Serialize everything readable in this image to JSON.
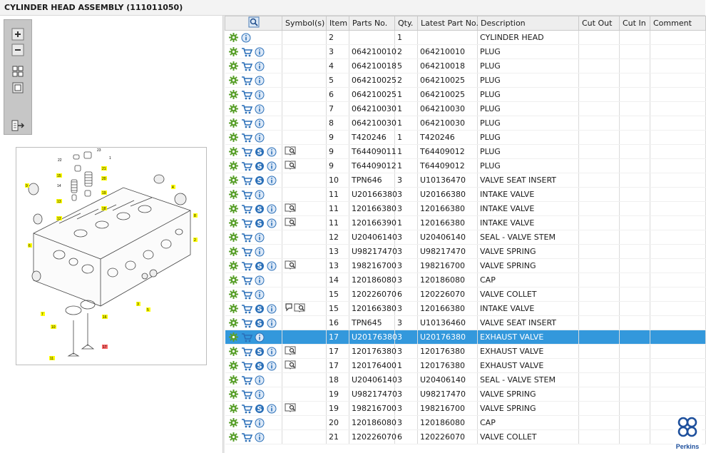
{
  "header": {
    "title": "CYLINDER HEAD ASSEMBLY (111011050)"
  },
  "toolbar": {
    "tools": [
      "zoom-in-icon",
      "zoom-out-icon",
      "fit-grid-icon",
      "fit-page-icon",
      "export-icon"
    ]
  },
  "diagram": {
    "callouts": [
      "1",
      "2",
      "3",
      "4",
      "5",
      "6",
      "7",
      "8",
      "9",
      "10",
      "11",
      "12",
      "13",
      "14",
      "15",
      "16",
      "17",
      "18",
      "19",
      "20",
      "21",
      "22",
      "23"
    ]
  },
  "table": {
    "columns": [
      "",
      "Symbol(s)",
      "Item",
      "Parts No.",
      "Qty.",
      "Latest Part No.",
      "Description",
      "Cut Out",
      "Cut In",
      "Comment"
    ],
    "rows": [
      {
        "item": "2",
        "part": "",
        "qty": "1",
        "latest": "",
        "desc": "CYLINDER HEAD",
        "cart": false,
        "s": false,
        "sym": "",
        "selected": false
      },
      {
        "item": "3",
        "part": "064210010",
        "qty": "2",
        "latest": "064210010",
        "desc": "PLUG",
        "cart": true,
        "s": false,
        "sym": "",
        "selected": false
      },
      {
        "item": "4",
        "part": "064210018",
        "qty": "5",
        "latest": "064210018",
        "desc": "PLUG",
        "cart": true,
        "s": false,
        "sym": "",
        "selected": false
      },
      {
        "item": "5",
        "part": "064210025",
        "qty": "2",
        "latest": "064210025",
        "desc": "PLUG",
        "cart": true,
        "s": false,
        "sym": "",
        "selected": false
      },
      {
        "item": "6",
        "part": "064210025",
        "qty": "1",
        "latest": "064210025",
        "desc": "PLUG",
        "cart": true,
        "s": false,
        "sym": "",
        "selected": false
      },
      {
        "item": "7",
        "part": "064210030",
        "qty": "1",
        "latest": "064210030",
        "desc": "PLUG",
        "cart": true,
        "s": false,
        "sym": "",
        "selected": false
      },
      {
        "item": "8",
        "part": "064210030",
        "qty": "1",
        "latest": "064210030",
        "desc": "PLUG",
        "cart": true,
        "s": false,
        "sym": "",
        "selected": false
      },
      {
        "item": "9",
        "part": "T420246",
        "qty": "1",
        "latest": "T420246",
        "desc": "PLUG",
        "cart": true,
        "s": false,
        "sym": "",
        "selected": false
      },
      {
        "item": "9",
        "part": "T64409011",
        "qty": "1",
        "latest": "T64409012",
        "desc": "PLUG",
        "cart": true,
        "s": true,
        "sym": "book",
        "selected": false
      },
      {
        "item": "9",
        "part": "T64409012",
        "qty": "1",
        "latest": "T64409012",
        "desc": "PLUG",
        "cart": true,
        "s": true,
        "sym": "book",
        "selected": false
      },
      {
        "item": "10",
        "part": "TPN646",
        "qty": "3",
        "latest": "U10136470",
        "desc": "VALVE SEAT INSERT",
        "cart": true,
        "s": true,
        "sym": "",
        "selected": false
      },
      {
        "item": "11",
        "part": "U20166380",
        "qty": "3",
        "latest": "U20166380",
        "desc": "INTAKE VALVE",
        "cart": true,
        "s": false,
        "sym": "",
        "selected": false
      },
      {
        "item": "11",
        "part": "120166380",
        "qty": "3",
        "latest": "120166380",
        "desc": "INTAKE VALVE",
        "cart": true,
        "s": true,
        "sym": "book",
        "selected": false
      },
      {
        "item": "11",
        "part": "120166390",
        "qty": "1",
        "latest": "120166380",
        "desc": "INTAKE VALVE",
        "cart": true,
        "s": true,
        "sym": "book",
        "selected": false
      },
      {
        "item": "12",
        "part": "U20406140",
        "qty": "3",
        "latest": "U20406140",
        "desc": "SEAL - VALVE STEM",
        "cart": true,
        "s": false,
        "sym": "",
        "selected": false
      },
      {
        "item": "13",
        "part": "U98217470",
        "qty": "3",
        "latest": "U98217470",
        "desc": "VALVE SPRING",
        "cart": true,
        "s": false,
        "sym": "",
        "selected": false
      },
      {
        "item": "13",
        "part": "198216700",
        "qty": "3",
        "latest": "198216700",
        "desc": "VALVE SPRING",
        "cart": true,
        "s": true,
        "sym": "book",
        "selected": false
      },
      {
        "item": "14",
        "part": "120186080",
        "qty": "3",
        "latest": "120186080",
        "desc": "CAP",
        "cart": true,
        "s": false,
        "sym": "",
        "selected": false
      },
      {
        "item": "15",
        "part": "120226070",
        "qty": "6",
        "latest": "120226070",
        "desc": "VALVE COLLET",
        "cart": true,
        "s": false,
        "sym": "",
        "selected": false
      },
      {
        "item": "15",
        "part": "120166380",
        "qty": "3",
        "latest": "120166380",
        "desc": "INTAKE VALVE",
        "cart": true,
        "s": true,
        "sym": "note-book",
        "selected": false
      },
      {
        "item": "16",
        "part": "TPN645",
        "qty": "3",
        "latest": "U10136460",
        "desc": "VALVE SEAT INSERT",
        "cart": true,
        "s": true,
        "sym": "",
        "selected": false
      },
      {
        "item": "17",
        "part": "U20176380",
        "qty": "3",
        "latest": "U20176380",
        "desc": "EXHAUST VALVE",
        "cart": true,
        "s": false,
        "sym": "",
        "selected": true
      },
      {
        "item": "17",
        "part": "120176380",
        "qty": "3",
        "latest": "120176380",
        "desc": "EXHAUST VALVE",
        "cart": true,
        "s": true,
        "sym": "book",
        "selected": false
      },
      {
        "item": "17",
        "part": "120176400",
        "qty": "1",
        "latest": "120176380",
        "desc": "EXHAUST VALVE",
        "cart": true,
        "s": true,
        "sym": "book",
        "selected": false
      },
      {
        "item": "18",
        "part": "U20406140",
        "qty": "3",
        "latest": "U20406140",
        "desc": "SEAL - VALVE STEM",
        "cart": true,
        "s": false,
        "sym": "",
        "selected": false
      },
      {
        "item": "19",
        "part": "U98217470",
        "qty": "3",
        "latest": "U98217470",
        "desc": "VALVE SPRING",
        "cart": true,
        "s": false,
        "sym": "",
        "selected": false
      },
      {
        "item": "19",
        "part": "198216700",
        "qty": "3",
        "latest": "198216700",
        "desc": "VALVE SPRING",
        "cart": true,
        "s": true,
        "sym": "book",
        "selected": false
      },
      {
        "item": "20",
        "part": "120186080",
        "qty": "3",
        "latest": "120186080",
        "desc": "CAP",
        "cart": true,
        "s": false,
        "sym": "",
        "selected": false
      },
      {
        "item": "21",
        "part": "120226070",
        "qty": "6",
        "latest": "120226070",
        "desc": "VALVE COLLET",
        "cart": true,
        "s": false,
        "sym": "",
        "selected": false
      }
    ]
  },
  "logo": {
    "text": "Perkins"
  },
  "colors": {
    "selected_row": "#3398dc",
    "gear": "#5aa02c",
    "cart": "#2a6fb8",
    "info": "#2a6fb8",
    "callout": "#ffff00"
  }
}
